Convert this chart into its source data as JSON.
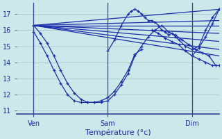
{
  "background_color": "#cce8ea",
  "grid_color": "#aacccc",
  "line_color": "#1a2eaa",
  "figsize": [
    3.2,
    2.0
  ],
  "dpi": 100,
  "ylim": [
    10.8,
    17.7
  ],
  "xlim": [
    0,
    60
  ],
  "yticks": [
    11,
    12,
    13,
    14,
    15,
    16,
    17
  ],
  "xlabel": "Température (°c)",
  "day_positions": [
    5,
    27,
    52
  ],
  "day_labels": [
    "Ven",
    "Sam",
    "Dim"
  ],
  "fan_lines": [
    {
      "x": [
        5,
        60
      ],
      "y": [
        16.3,
        17.3
      ]
    },
    {
      "x": [
        5,
        60
      ],
      "y": [
        16.3,
        16.6
      ]
    },
    {
      "x": [
        5,
        60
      ],
      "y": [
        16.3,
        16.3
      ]
    },
    {
      "x": [
        5,
        60
      ],
      "y": [
        16.3,
        15.8
      ]
    },
    {
      "x": [
        5,
        60
      ],
      "y": [
        16.3,
        15.3
      ]
    },
    {
      "x": [
        5,
        60
      ],
      "y": [
        16.3,
        14.8
      ]
    },
    {
      "x": [
        5,
        60
      ],
      "y": [
        16.3,
        14.4
      ]
    }
  ],
  "curve_deep": {
    "x": [
      5,
      7,
      9,
      11,
      13,
      15,
      17,
      19,
      21,
      23,
      25,
      27,
      29,
      31,
      33,
      35,
      37
    ],
    "y": [
      15.9,
      15.2,
      14.4,
      13.5,
      12.7,
      12.0,
      11.6,
      11.5,
      11.5,
      11.5,
      11.6,
      11.8,
      12.2,
      12.8,
      13.5,
      14.5,
      14.8
    ]
  },
  "curve_mid": {
    "x": [
      5,
      7,
      9,
      11,
      13,
      15,
      17,
      19,
      21,
      23,
      25,
      27,
      29,
      31,
      33,
      35,
      37,
      39,
      41,
      43,
      45,
      47,
      49,
      51,
      53,
      55,
      57,
      59
    ],
    "y": [
      16.3,
      15.8,
      15.2,
      14.4,
      13.5,
      12.7,
      12.1,
      11.7,
      11.5,
      11.5,
      11.5,
      11.6,
      12.0,
      12.6,
      13.3,
      14.4,
      15.0,
      15.6,
      16.0,
      16.3,
      15.9,
      15.7,
      15.4,
      15.1,
      14.8,
      14.6,
      14.4,
      13.8
    ]
  },
  "curve_spike": {
    "x": [
      27,
      29,
      31,
      33,
      34,
      35,
      36,
      37,
      38,
      39,
      40,
      41,
      42,
      43,
      44,
      45,
      46,
      47,
      48,
      50,
      52,
      54,
      56,
      58,
      60
    ],
    "y": [
      14.7,
      15.4,
      16.3,
      17.0,
      17.2,
      17.3,
      17.2,
      17.0,
      16.8,
      16.6,
      16.6,
      16.5,
      16.3,
      16.0,
      15.9,
      15.7,
      15.8,
      15.6,
      15.4,
      15.0,
      14.8,
      15.0,
      16.0,
      16.8,
      17.3
    ]
  },
  "curve_right_drop": {
    "x": [
      40,
      42,
      44,
      46,
      48,
      50,
      52,
      54,
      56,
      58,
      60
    ],
    "y": [
      16.0,
      15.8,
      15.5,
      15.3,
      15.1,
      14.7,
      14.4,
      14.2,
      14.0,
      13.8,
      13.8
    ]
  },
  "curve_right_rise": {
    "x": [
      52,
      54,
      56,
      58,
      60
    ],
    "y": [
      14.4,
      14.9,
      15.6,
      16.4,
      17.3
    ]
  }
}
